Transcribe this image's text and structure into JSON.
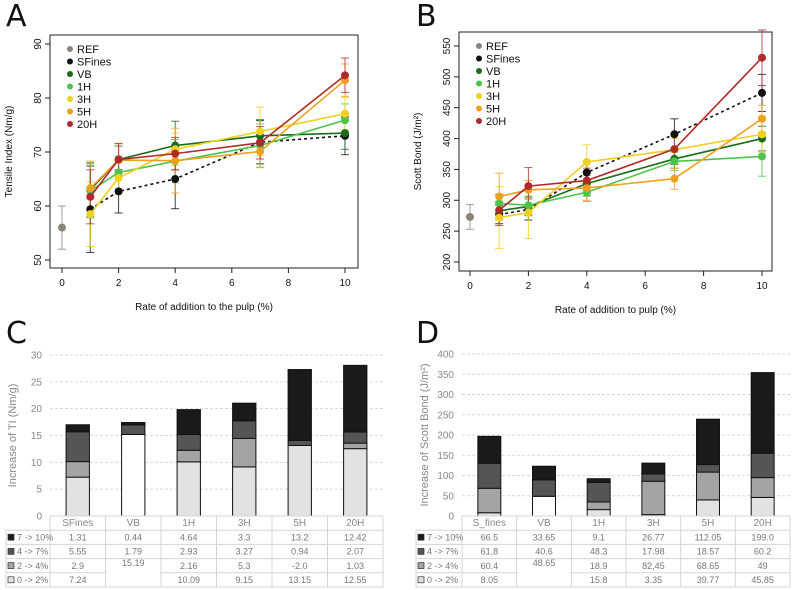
{
  "chart_data": [
    {
      "panel": "A",
      "type": "line",
      "xlabel": "Rate of addition to the pulp (%)",
      "ylabel": "Tensile Index (Nm/g)",
      "xlim": [
        0,
        10
      ],
      "ylim": [
        50,
        90
      ],
      "xticks": [
        0,
        2,
        4,
        6,
        8,
        10
      ],
      "yticks": [
        50,
        60,
        70,
        80,
        90
      ],
      "legend_position": "top-left",
      "series": [
        {
          "name": "REF",
          "color": "#8c8577",
          "x": [
            0
          ],
          "y": [
            56
          ],
          "err": [
            4
          ]
        },
        {
          "name": "SFines",
          "color": "#111111",
          "dashed": true,
          "x": [
            1,
            2,
            4,
            7,
            10
          ],
          "y": [
            59.4,
            62.7,
            65.0,
            71.8,
            73.0
          ],
          "err": [
            8,
            4,
            5.5,
            4,
            3.5
          ]
        },
        {
          "name": "VB",
          "color": "#1a6b1a",
          "x": [
            1,
            2,
            4,
            7,
            10
          ],
          "y": [
            63.0,
            68.6,
            71.2,
            73.0,
            73.5
          ],
          "err": [
            5,
            2.5,
            4.5,
            3,
            3
          ]
        },
        {
          "name": "1H",
          "color": "#4cc44c",
          "x": [
            1,
            2,
            4,
            7,
            10
          ],
          "y": [
            62.8,
            66.2,
            68.3,
            71.2,
            75.9
          ],
          "err": [
            5,
            3,
            4,
            4,
            3
          ]
        },
        {
          "name": "3H",
          "color": "#f0d020",
          "x": [
            1,
            2,
            4,
            7,
            10
          ],
          "y": [
            58.5,
            65.2,
            70.5,
            73.8,
            77.1
          ],
          "err": [
            6,
            3,
            3,
            4.5,
            3
          ]
        },
        {
          "name": "5H",
          "color": "#f0a020",
          "x": [
            1,
            2,
            4,
            7,
            10
          ],
          "y": [
            63.3,
            68.5,
            68.4,
            70.1,
            83.3
          ],
          "err": [
            5,
            3,
            6,
            3,
            3
          ]
        },
        {
          "name": "20H",
          "color": "#b02a2a",
          "x": [
            1,
            2,
            4,
            7,
            10
          ],
          "y": [
            61.7,
            68.6,
            69.7,
            71.7,
            84.2
          ],
          "err": [
            5,
            3,
            3,
            3,
            3.2
          ]
        }
      ]
    },
    {
      "panel": "B",
      "type": "line",
      "xlabel": "Rate of addition to pulp (%)",
      "ylabel": "Scott Bond (J/m²)",
      "xlim": [
        0,
        10
      ],
      "ylim": [
        200,
        550
      ],
      "xticks": [
        0,
        2,
        4,
        6,
        8,
        10
      ],
      "yticks": [
        200,
        250,
        300,
        350,
        400,
        450,
        500,
        550
      ],
      "legend_position": "top-left",
      "series": [
        {
          "name": "REF",
          "color": "#8c8577",
          "x": [
            0
          ],
          "y": [
            273
          ],
          "err": [
            20
          ]
        },
        {
          "name": "SFines",
          "color": "#111111",
          "dashed": true,
          "x": [
            1,
            2,
            4,
            7,
            10
          ],
          "y": [
            277,
            285,
            345,
            407,
            474
          ],
          "err": [
            15,
            17,
            18,
            25,
            30
          ]
        },
        {
          "name": "VB",
          "color": "#1a6b1a",
          "x": [
            1,
            2,
            4,
            7,
            10
          ],
          "y": [
            283,
            290,
            327,
            367,
            400
          ],
          "err": [
            15,
            15,
            20,
            15,
            20
          ]
        },
        {
          "name": "1H",
          "color": "#4cc44c",
          "x": [
            1,
            2,
            4,
            7,
            10
          ],
          "y": [
            295,
            292,
            313,
            363,
            371
          ],
          "err": [
            15,
            15,
            15,
            15,
            32
          ]
        },
        {
          "name": "3H",
          "color": "#f0d020",
          "x": [
            1,
            2,
            4,
            7,
            10
          ],
          "y": [
            272,
            280,
            362,
            382,
            407
          ],
          "err": [
            50,
            42,
            28,
            18,
            30
          ]
        },
        {
          "name": "5H",
          "color": "#f0a020",
          "x": [
            1,
            2,
            4,
            7,
            10
          ],
          "y": [
            306,
            317,
            320,
            335,
            432
          ],
          "err": [
            38,
            15,
            20,
            17,
            22
          ]
        },
        {
          "name": "20H",
          "color": "#b02a2a",
          "x": [
            1,
            2,
            4,
            7,
            10
          ],
          "y": [
            284,
            323,
            332,
            383,
            531
          ],
          "err": [
            25,
            30,
            20,
            25,
            45
          ]
        }
      ]
    },
    {
      "panel": "C",
      "type": "bar",
      "stacked": true,
      "ylabel": "Increase of TI (Nm/g)",
      "ylim": [
        0,
        30
      ],
      "yticks": [
        0,
        5,
        10,
        15,
        20,
        25,
        30
      ],
      "grid": true,
      "categories": [
        "SFines",
        "VB",
        "1H",
        "3H",
        "5H",
        "20H"
      ],
      "series": [
        {
          "name": "0 -> 2%",
          "color": "#e2e2e2",
          "values": [
            "7.24",
            "15.19",
            "10.09",
            "9.15",
            "13.15",
            "12.55"
          ]
        },
        {
          "name": "2 -> 4%",
          "color": "#a4a4a4",
          "values": [
            "2.9",
            "",
            "2.16",
            "5.3",
            "-2.0",
            "1.03"
          ]
        },
        {
          "name": "4 -> 7%",
          "color": "#555555",
          "values": [
            "5.55",
            "1.79",
            "2.93",
            "3.27",
            "0.94",
            "2.07"
          ]
        },
        {
          "name": "7 -> 10%",
          "color": "#1a1a1a",
          "values": [
            "1.31",
            "0.44",
            "4.64",
            "3.3",
            "13.2",
            "12.42"
          ]
        }
      ],
      "merged_cells": {
        "VB": "0 -> 4%"
      }
    },
    {
      "panel": "D",
      "type": "bar",
      "stacked": true,
      "ylabel": "Increase of Scott Bond (J/m²)",
      "ylim": [
        0,
        400
      ],
      "yticks": [
        0,
        50,
        100,
        150,
        200,
        250,
        300,
        350,
        400
      ],
      "grid": true,
      "categories": [
        "S_fines",
        "VB",
        "1H",
        "3H",
        "5H",
        "20H"
      ],
      "series": [
        {
          "name": "0 -> 2%",
          "color": "#e2e2e2",
          "values": [
            "8.05",
            "48.65",
            "15.8",
            "3.35",
            "39.77",
            "45.85"
          ]
        },
        {
          "name": "2 -> 4%",
          "color": "#a4a4a4",
          "values": [
            "60.4",
            "",
            "18.9",
            "82,45",
            "68.65",
            "49"
          ]
        },
        {
          "name": "4 -> 7%",
          "color": "#555555",
          "values": [
            "61,8",
            "40.6",
            "48.3",
            "17.98",
            "18.57",
            "60.2"
          ]
        },
        {
          "name": "7 -> 10%",
          "color": "#1a1a1a",
          "values": [
            "66.5",
            "33.65",
            "9.1",
            "26.77",
            "112.05",
            "199.0"
          ]
        }
      ],
      "merged_cells": {
        "VB": "0 -> 4%"
      }
    }
  ]
}
